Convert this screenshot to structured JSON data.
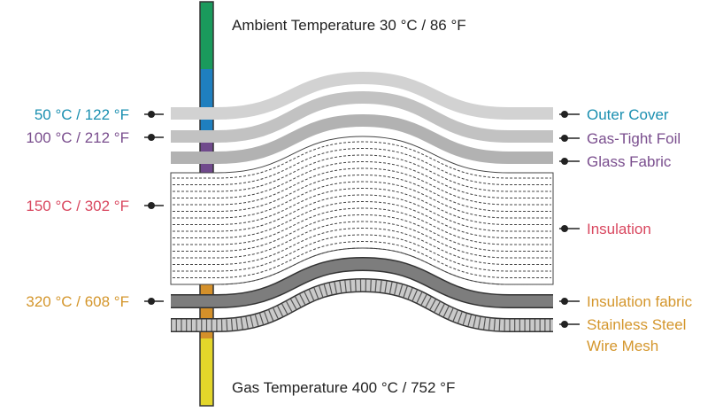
{
  "ambient_label": "Ambient Temperature 30 °C / 86 °F",
  "gas_label": "Gas Temperature 400 °C / 752 °F",
  "temperatures": [
    {
      "text": "50 °C / 122 °F",
      "color": "#1a8fb0"
    },
    {
      "text": "100 °C / 212 °F",
      "color": "#7a4e8e"
    },
    {
      "text": "150 °C / 302 °F",
      "color": "#d9475f"
    },
    {
      "text": "320 °C / 608 °F",
      "color": "#d4962c"
    }
  ],
  "layers": [
    {
      "text": "Outer Cover",
      "color": "#1a8fb0"
    },
    {
      "text": "Gas-Tight Foil",
      "color": "#7a4e8e"
    },
    {
      "text": "Glass Fabric",
      "color": "#7a4e8e"
    },
    {
      "text": "Insulation",
      "color": "#d9475f"
    },
    {
      "text": "Insulation fabric",
      "color": "#d4962c"
    },
    {
      "text": "Stainless Steel",
      "color": "#d4962c"
    },
    {
      "text": "Wire Mesh",
      "color": "#d4962c"
    }
  ],
  "scale_colors": [
    "#1a9a5c",
    "#1f7fbf",
    "#704a8c",
    "#d9475f",
    "#d4902a",
    "#e3d62a"
  ],
  "colors": {
    "outer_cover": "#d2d2d2",
    "gas_tight_foil": "#c2c2c2",
    "glass_fabric": "#b2b2b2",
    "insulation_fabric": "#7d7d7d",
    "mesh": "#c8c8c8",
    "line": "#333333"
  }
}
